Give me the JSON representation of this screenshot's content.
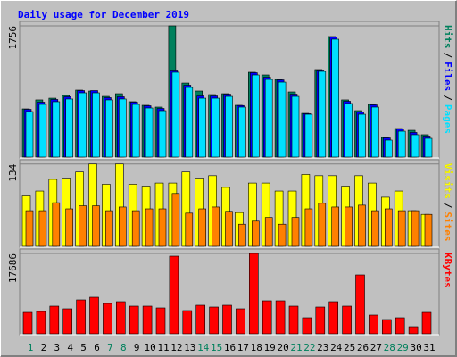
{
  "title": "Daily usage for December 2019",
  "chart_data": [
    {
      "type": "bar",
      "legend_separator": "/",
      "ylim": [
        0,
        1792
      ],
      "yticks": [
        1756
      ],
      "grid": true,
      "series": [
        {
          "name": "Hits",
          "color": "#00805c",
          "values": [
            645,
            765,
            788,
            824,
            896,
            884,
            812,
            848,
            741,
            693,
            669,
            1756,
            991,
            884,
            836,
            848,
            693,
            1135,
            1099,
            1039,
            872,
            585,
            1171,
            1613,
            765,
            621,
            705,
            263,
            382,
            358,
            299
          ]
        },
        {
          "name": "Files",
          "color": "#0000ff",
          "values": [
            639,
            735,
            771,
            807,
            890,
            890,
            795,
            807,
            735,
            687,
            651,
            1165,
            962,
            818,
            818,
            842,
            690,
            1129,
            1069,
            1033,
            842,
            580,
            1165,
            1607,
            747,
            603,
            699,
            257,
            376,
            329,
            281
          ]
        },
        {
          "name": "Pages",
          "color": "#00e0ff",
          "values": [
            609,
            705,
            741,
            777,
            860,
            860,
            765,
            777,
            705,
            657,
            621,
            1135,
            932,
            788,
            788,
            812,
            669,
            1099,
            1039,
            1003,
            812,
            573,
            1147,
            1577,
            717,
            573,
            669,
            227,
            346,
            299,
            251
          ]
        }
      ]
    },
    {
      "type": "bar",
      "legend_separator": "/",
      "ylim": [
        0,
        138
      ],
      "yticks": [
        134
      ],
      "grid": true,
      "series": [
        {
          "name": "Visits",
          "color": "#ffff00",
          "values": [
            82,
            90,
            109,
            111,
            121,
            134,
            101,
            134,
            101,
            98,
            103,
            103,
            121,
            111,
            115,
            96,
            55,
            103,
            103,
            90,
            90,
            117,
            115,
            115,
            98,
            115,
            103,
            80,
            90,
            58,
            52
          ]
        },
        {
          "name": "Sites",
          "color": "#ff8000",
          "values": [
            58,
            58,
            71,
            61,
            66,
            66,
            58,
            64,
            58,
            61,
            61,
            86,
            54,
            61,
            64,
            57,
            36,
            41,
            47,
            36,
            47,
            61,
            70,
            64,
            64,
            67,
            58,
            61,
            58,
            58,
            52
          ]
        }
      ]
    },
    {
      "type": "bar",
      "ylim": [
        0,
        18276
      ],
      "yticks": [
        17686
      ],
      "grid": true,
      "categories": [
        "1",
        "2",
        "3",
        "4",
        "5",
        "6",
        "7",
        "8",
        "9",
        "10",
        "11",
        "12",
        "13",
        "14",
        "15",
        "16",
        "17",
        "18",
        "19",
        "20",
        "21",
        "22",
        "23",
        "24",
        "25",
        "26",
        "27",
        "28",
        "29",
        "30",
        "31"
      ],
      "highlight": [
        0,
        6,
        7,
        13,
        14,
        20,
        21,
        27,
        28
      ],
      "highlight_color": "#00805c",
      "series": [
        {
          "name": "KBytes",
          "color": "#ff0000",
          "values": [
            4716,
            4913,
            6092,
            5502,
            7467,
            8057,
            6681,
            7074,
            6092,
            6092,
            5699,
            17096,
            5109,
            6288,
            5895,
            6288,
            5502,
            17686,
            7271,
            7271,
            6092,
            3537,
            5895,
            7074,
            6092,
            12969,
            4127,
            3144,
            3537,
            1572,
            4716
          ]
        }
      ]
    }
  ]
}
